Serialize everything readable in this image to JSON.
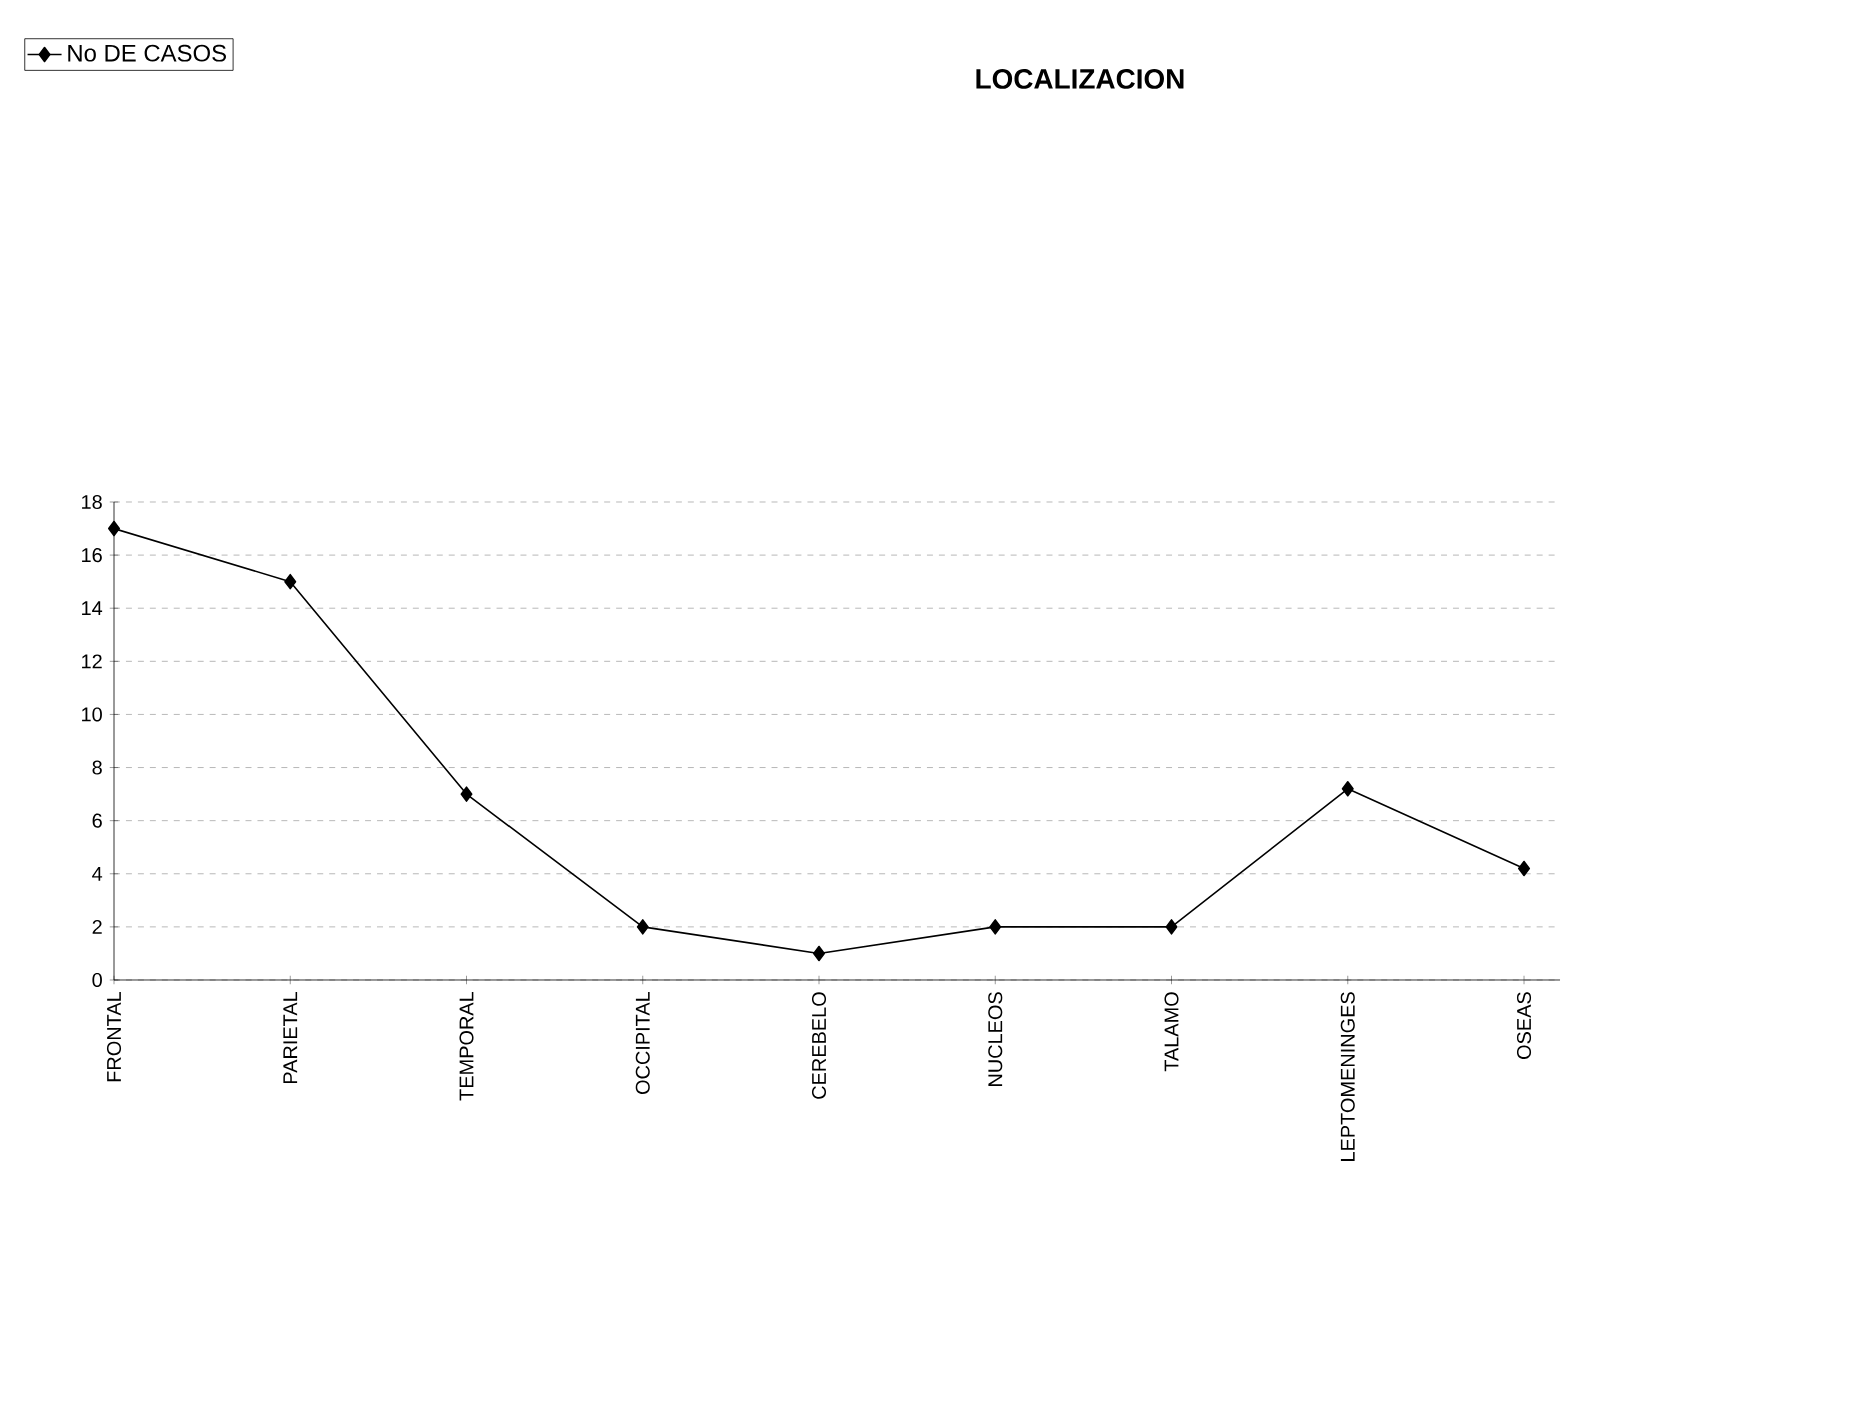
{
  "chart_data": {
    "type": "line",
    "title": "LOCALIZACION",
    "categories": [
      "FRONTAL",
      "PARIETAL",
      "TEMPORAL",
      "OCCIPITAL",
      "CEREBELO",
      "NUCLEOS",
      "TALAMO",
      "LEPTOMENINGES",
      "OSEAS"
    ],
    "series": [
      {
        "name": "No DE CASOS",
        "color": "#000000",
        "values": [
          17,
          15,
          7,
          2,
          1,
          2,
          2,
          7.2,
          4.2
        ]
      }
    ],
    "ylim": [
      0,
      18
    ],
    "yticks": [
      0,
      2,
      4,
      6,
      8,
      10,
      12,
      14,
      16,
      18
    ],
    "grid": "y",
    "legend": "top left",
    "marker": "diamond",
    "line_style": "solid"
  }
}
